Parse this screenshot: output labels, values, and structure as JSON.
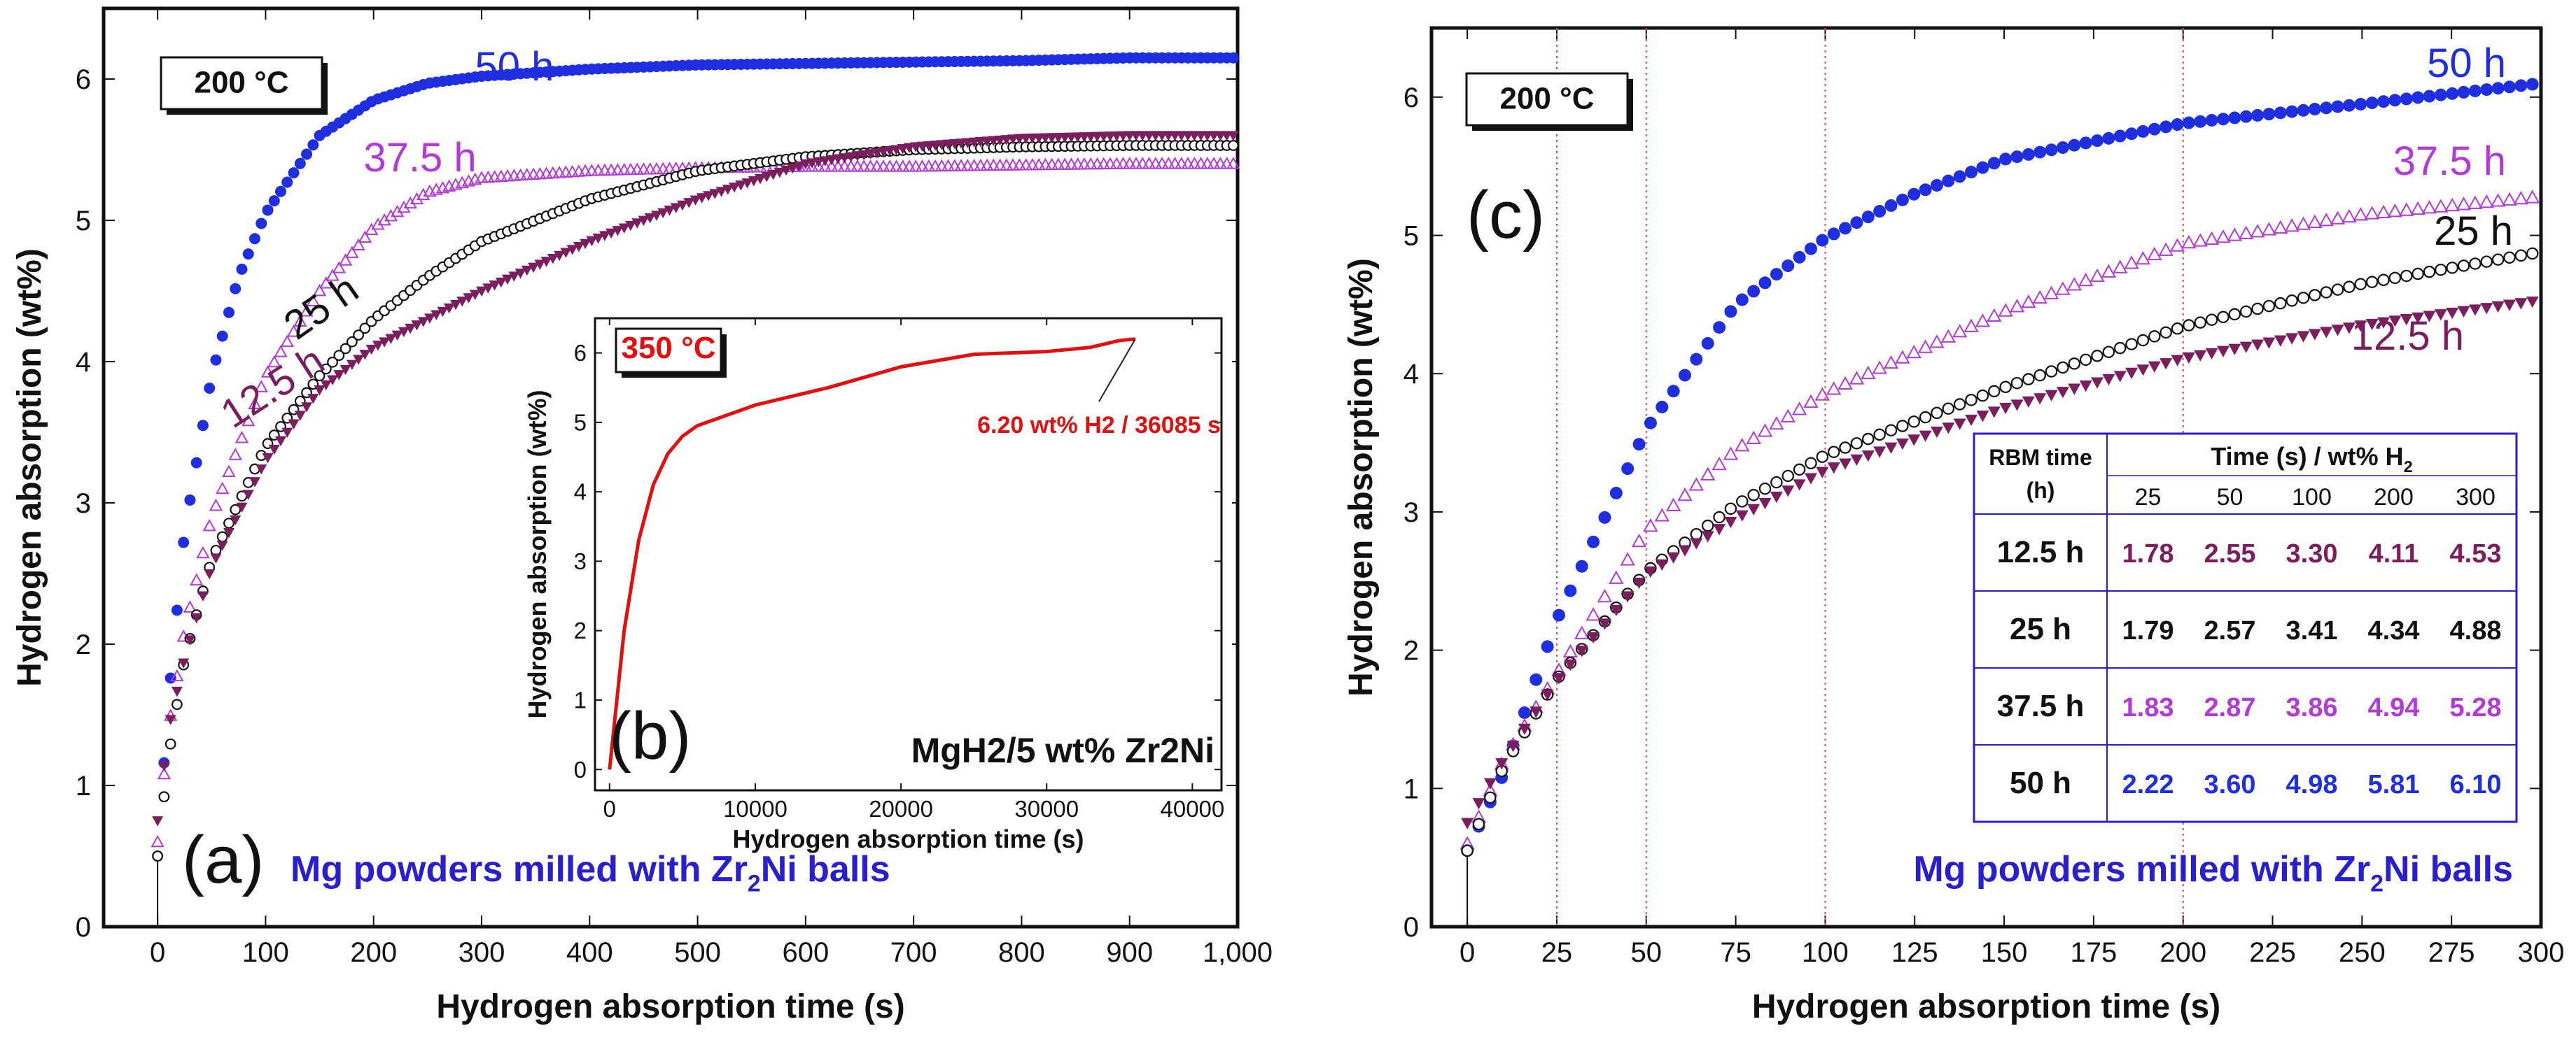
{
  "colors": {
    "s50": "#1f2fe0",
    "s375": "#b23ad8",
    "s25": "#111111",
    "s125": "#7b1e5e",
    "inset": "#e01010",
    "vline": "#d84a4a",
    "annotBlue": "#2a1fd0"
  },
  "chart_data": [
    {
      "type": "scatter",
      "panel": "(a)",
      "title": "",
      "xlabel": "Hydrogen absorption time (s)",
      "ylabel": "Hydrogen absorption (wt%)",
      "xlim": [
        -50,
        1000
      ],
      "ylim": [
        0,
        6.5
      ],
      "xticks": [
        0,
        100,
        200,
        300,
        400,
        500,
        600,
        700,
        800,
        900,
        1000
      ],
      "xtick_labels": [
        "0",
        "100",
        "200",
        "300",
        "400",
        "500",
        "600",
        "700",
        "800",
        "900",
        "1,000"
      ],
      "yticks": [
        0,
        1,
        2,
        3,
        4,
        5,
        6
      ],
      "ytick_labels": [
        "0",
        "1",
        "2",
        "3",
        "4",
        "5",
        "6"
      ],
      "temperature_label": "200 °C",
      "annotation_prefix": "Mg powders milled with Zr",
      "annotation_sub": "2",
      "annotation_suffix": "Ni balls",
      "series": [
        {
          "name": "50 h",
          "label": "50 h",
          "key": "s50",
          "points": [
            [
              0,
              0.5
            ],
            [
              10,
              1.6
            ],
            [
              25,
              2.8
            ],
            [
              50,
              3.9
            ],
            [
              75,
              4.6
            ],
            [
              100,
              5.05
            ],
            [
              150,
              5.6
            ],
            [
              200,
              5.85
            ],
            [
              250,
              5.97
            ],
            [
              300,
              6.02
            ],
            [
              400,
              6.07
            ],
            [
              500,
              6.1
            ],
            [
              600,
              6.11
            ],
            [
              700,
              6.12
            ],
            [
              800,
              6.13
            ],
            [
              900,
              6.15
            ],
            [
              1000,
              6.15
            ]
          ]
        },
        {
          "name": "37.5 h",
          "label": "37.5 h",
          "key": "s375",
          "points": [
            [
              0,
              0.6
            ],
            [
              10,
              1.4
            ],
            [
              25,
              2.1
            ],
            [
              50,
              2.9
            ],
            [
              100,
              3.9
            ],
            [
              150,
              4.5
            ],
            [
              200,
              4.95
            ],
            [
              250,
              5.2
            ],
            [
              300,
              5.3
            ],
            [
              400,
              5.35
            ],
            [
              500,
              5.37
            ],
            [
              600,
              5.38
            ],
            [
              700,
              5.38
            ],
            [
              800,
              5.39
            ],
            [
              900,
              5.4
            ],
            [
              1000,
              5.4
            ]
          ]
        },
        {
          "name": "25 h",
          "label": "25 h",
          "key": "s25",
          "points": [
            [
              0,
              0.5
            ],
            [
              10,
              1.2
            ],
            [
              25,
              1.9
            ],
            [
              50,
              2.6
            ],
            [
              100,
              3.4
            ],
            [
              150,
              3.9
            ],
            [
              200,
              4.3
            ],
            [
              250,
              4.6
            ],
            [
              300,
              4.85
            ],
            [
              400,
              5.15
            ],
            [
              500,
              5.35
            ],
            [
              600,
              5.45
            ],
            [
              700,
              5.5
            ],
            [
              800,
              5.52
            ],
            [
              900,
              5.53
            ],
            [
              1000,
              5.53
            ]
          ]
        },
        {
          "name": "12.5 h",
          "label": "12.5 h",
          "key": "s125",
          "points": [
            [
              0,
              0.75
            ],
            [
              10,
              1.4
            ],
            [
              25,
              1.9
            ],
            [
              50,
              2.55
            ],
            [
              100,
              3.3
            ],
            [
              150,
              3.8
            ],
            [
              200,
              4.1
            ],
            [
              250,
              4.3
            ],
            [
              300,
              4.5
            ],
            [
              400,
              4.85
            ],
            [
              500,
              5.15
            ],
            [
              600,
              5.4
            ],
            [
              700,
              5.52
            ],
            [
              800,
              5.58
            ],
            [
              900,
              5.6
            ],
            [
              1000,
              5.6
            ]
          ]
        }
      ]
    },
    {
      "type": "line",
      "panel": "(b)",
      "title": "",
      "xlabel": "Hydrogen absorption time (s)",
      "ylabel": "Hydrogen absorption (wt%)",
      "xlim": [
        -1000,
        42000
      ],
      "ylim": [
        -0.3,
        6.5
      ],
      "xticks": [
        0,
        10000,
        20000,
        30000,
        40000
      ],
      "xtick_labels": [
        "0",
        "10000",
        "20000",
        "30000",
        "40000"
      ],
      "yticks": [
        0,
        1,
        2,
        3,
        4,
        5,
        6
      ],
      "ytick_labels": [
        "0",
        "1",
        "2",
        "3",
        "4",
        "5",
        "6"
      ],
      "temperature_label": "350 °C",
      "composition_label": "MgH2/5 wt% Zr2Ni",
      "annotation": "6.20 wt% H2 / 36085 s",
      "series": [
        {
          "name": "MgH2/5 wt% Zr2Ni at 350 °C",
          "key": "inset",
          "points": [
            [
              0,
              0
            ],
            [
              500,
              1.0
            ],
            [
              1000,
              2.0
            ],
            [
              2000,
              3.3
            ],
            [
              3000,
              4.1
            ],
            [
              4000,
              4.55
            ],
            [
              5000,
              4.8
            ],
            [
              6000,
              4.95
            ],
            [
              8000,
              5.1
            ],
            [
              10000,
              5.25
            ],
            [
              15000,
              5.5
            ],
            [
              20000,
              5.8
            ],
            [
              25000,
              5.98
            ],
            [
              30000,
              6.02
            ],
            [
              33000,
              6.08
            ],
            [
              35000,
              6.18
            ],
            [
              36085,
              6.2
            ]
          ]
        }
      ]
    },
    {
      "type": "scatter",
      "panel": "(c)",
      "title": "",
      "xlabel": "Hydrogen absorption time (s)",
      "ylabel": "Hydrogen absorption (wt%)",
      "xlim": [
        -10,
        300
      ],
      "ylim": [
        0,
        6.5
      ],
      "xticks": [
        0,
        25,
        50,
        75,
        100,
        125,
        150,
        175,
        200,
        225,
        250,
        275,
        300
      ],
      "xtick_labels": [
        "0",
        "25",
        "50",
        "75",
        "100",
        "125",
        "150",
        "175",
        "200",
        "225",
        "250",
        "275",
        "300"
      ],
      "yticks": [
        0,
        1,
        2,
        3,
        4,
        5,
        6
      ],
      "ytick_labels": [
        "0",
        "1",
        "2",
        "3",
        "4",
        "5",
        "6"
      ],
      "vertical_lines": [
        25,
        50,
        100,
        200
      ],
      "temperature_label": "200 °C",
      "annotation_prefix": "Mg powders milled with Zr",
      "annotation_sub": "2",
      "annotation_suffix": "Ni balls",
      "series": [
        {
          "name": "50 h",
          "label": "50 h",
          "key": "s50",
          "points": [
            [
              0,
              0.55
            ],
            [
              10,
              1.1
            ],
            [
              25,
              2.22
            ],
            [
              50,
              3.6
            ],
            [
              75,
              4.5
            ],
            [
              100,
              4.98
            ],
            [
              125,
              5.3
            ],
            [
              150,
              5.55
            ],
            [
              200,
              5.81
            ],
            [
              250,
              5.95
            ],
            [
              300,
              6.1
            ]
          ]
        },
        {
          "name": "37.5 h",
          "label": "37.5 h",
          "key": "s375",
          "points": [
            [
              0,
              0.6
            ],
            [
              10,
              1.2
            ],
            [
              25,
              1.83
            ],
            [
              50,
              2.87
            ],
            [
              75,
              3.45
            ],
            [
              100,
              3.86
            ],
            [
              150,
              4.45
            ],
            [
              200,
              4.94
            ],
            [
              250,
              5.15
            ],
            [
              300,
              5.28
            ]
          ]
        },
        {
          "name": "25 h",
          "label": "25 h",
          "key": "s25",
          "points": [
            [
              0,
              0.55
            ],
            [
              10,
              1.15
            ],
            [
              25,
              1.79
            ],
            [
              50,
              2.57
            ],
            [
              75,
              3.05
            ],
            [
              100,
              3.41
            ],
            [
              150,
              3.9
            ],
            [
              200,
              4.34
            ],
            [
              250,
              4.65
            ],
            [
              300,
              4.88
            ]
          ]
        },
        {
          "name": "12.5 h",
          "label": "12.5 h",
          "key": "s125",
          "points": [
            [
              0,
              0.75
            ],
            [
              10,
              1.2
            ],
            [
              25,
              1.78
            ],
            [
              50,
              2.55
            ],
            [
              75,
              2.95
            ],
            [
              100,
              3.3
            ],
            [
              150,
              3.75
            ],
            [
              200,
              4.11
            ],
            [
              250,
              4.35
            ],
            [
              300,
              4.53
            ]
          ]
        }
      ]
    },
    {
      "type": "table",
      "panel": "(c) inset table",
      "corner_top": "RBM time",
      "corner_bottom": "(h)",
      "header_prefix": "Time (s) / wt% H",
      "header_sub": "2",
      "columns": [
        "25",
        "50",
        "100",
        "200",
        "300"
      ],
      "rows": [
        {
          "label": "12.5 h",
          "key": "s125",
          "values": [
            "1.78",
            "2.55",
            "3.30",
            "4.11",
            "4.53"
          ]
        },
        {
          "label": "25 h",
          "key": "s25",
          "values": [
            "1.79",
            "2.57",
            "3.41",
            "4.34",
            "4.88"
          ]
        },
        {
          "label": "37.5 h",
          "key": "s375",
          "values": [
            "1.83",
            "2.87",
            "3.86",
            "4.94",
            "5.28"
          ]
        },
        {
          "label": "50 h",
          "key": "s50",
          "values": [
            "2.22",
            "3.60",
            "4.98",
            "5.81",
            "6.10"
          ]
        }
      ]
    }
  ]
}
